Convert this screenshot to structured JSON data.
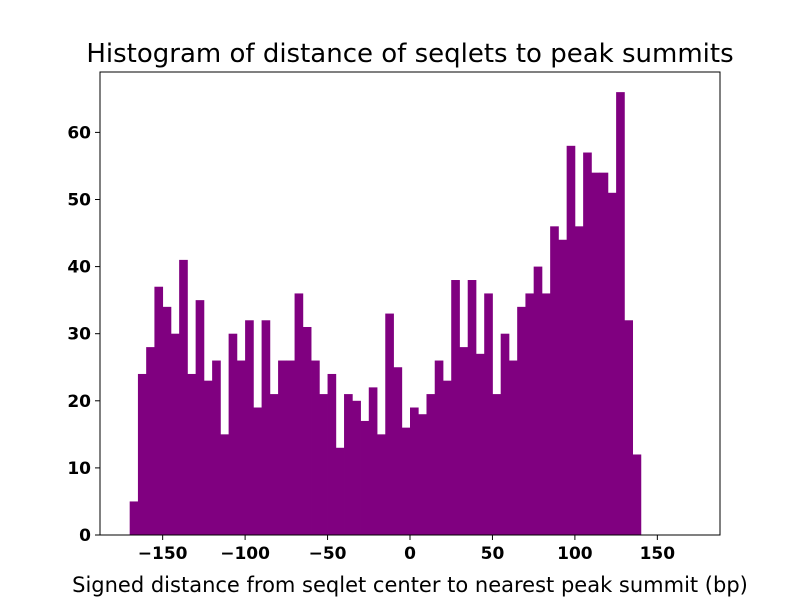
{
  "chart_data": {
    "type": "bar",
    "title": "Histogram of distance of seqlets to peak summits",
    "xlabel": "Signed distance from seqlet center to nearest peak summit (bp)",
    "ylabel": "",
    "xlim": [
      -188,
      188
    ],
    "ylim": [
      0,
      69
    ],
    "grid": false,
    "bar_color": "#800080",
    "bin_start": -170,
    "bin_width": 5,
    "counts": [
      5,
      24,
      28,
      37,
      34,
      30,
      41,
      24,
      35,
      23,
      26,
      15,
      30,
      26,
      32,
      19,
      32,
      21,
      26,
      26,
      36,
      31,
      26,
      21,
      24,
      13,
      21,
      20,
      17,
      22,
      15,
      33,
      25,
      16,
      19,
      18,
      21,
      26,
      23,
      38,
      28,
      38,
      27,
      36,
      21,
      30,
      26,
      34,
      36,
      40,
      36,
      46,
      44,
      58,
      46,
      57,
      54,
      54,
      51,
      66,
      32,
      12
    ],
    "xticks": [
      -150,
      -100,
      -50,
      0,
      50,
      100,
      150
    ],
    "xtick_labels": [
      "−150",
      "−100",
      "−50",
      "0",
      "50",
      "100",
      "150"
    ],
    "yticks": [
      0,
      10,
      20,
      30,
      40,
      50,
      60
    ],
    "ytick_labels": [
      "0",
      "10",
      "20",
      "30",
      "40",
      "50",
      "60"
    ]
  }
}
